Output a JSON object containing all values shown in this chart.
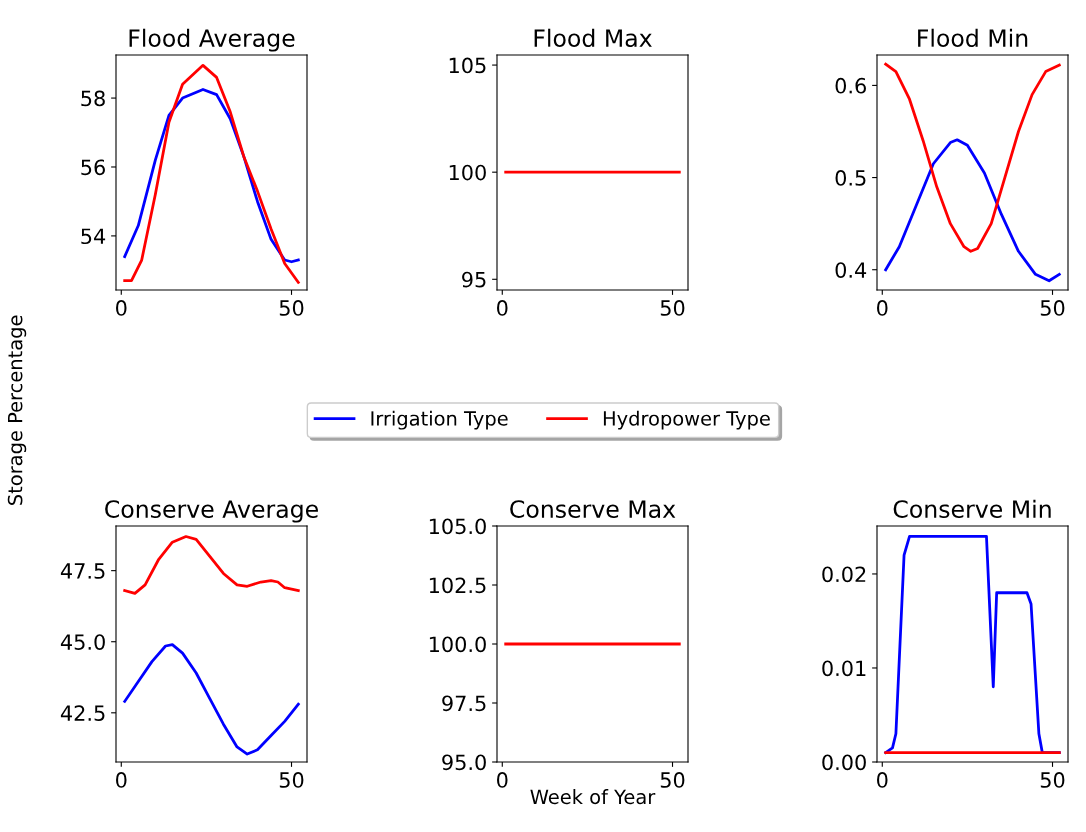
{
  "chart_data": [
    {
      "type": "line",
      "title": "Flood Average",
      "legend": "bottom",
      "xlim": [
        -1.55,
        54.55
      ],
      "xticks": [
        0,
        50
      ],
      "ylim": [
        52.43,
        59.25
      ],
      "yticks": [
        54,
        56,
        58
      ],
      "series": [
        {
          "name": "Irrigation Type",
          "color": "#0000ff",
          "x": [
            1,
            5,
            10,
            14,
            18,
            24,
            28,
            32,
            36,
            40,
            44,
            48,
            50,
            52
          ],
          "values": [
            53.4,
            54.3,
            56.2,
            57.5,
            58.0,
            58.25,
            58.1,
            57.4,
            56.3,
            55.0,
            53.9,
            53.3,
            53.25,
            53.3
          ]
        },
        {
          "name": "Hydropower Type",
          "color": "#ff0000",
          "x": [
            1,
            3,
            6,
            10,
            14,
            18,
            24,
            28,
            32,
            36,
            40,
            44,
            48,
            52
          ],
          "values": [
            52.7,
            52.7,
            53.3,
            55.2,
            57.3,
            58.4,
            58.95,
            58.6,
            57.6,
            56.3,
            55.3,
            54.2,
            53.2,
            52.65
          ]
        }
      ]
    },
    {
      "type": "line",
      "title": "Flood Max",
      "xlim": [
        -1.55,
        54.55
      ],
      "xticks": [
        0,
        50
      ],
      "ylim": [
        94.5,
        105.47
      ],
      "yticks": [
        95,
        100,
        105
      ],
      "series": [
        {
          "color": "#ff0000",
          "x": [
            1,
            52
          ],
          "values": [
            100,
            100
          ]
        }
      ]
    },
    {
      "type": "line",
      "title": "Flood Min",
      "xlim": [
        -1.55,
        54.55
      ],
      "xticks": [
        0,
        50
      ],
      "ylim": [
        0.378,
        0.633
      ],
      "yticks": [
        0.4,
        0.5,
        0.6
      ],
      "series": [
        {
          "color": "#0000ff",
          "x": [
            1,
            5,
            10,
            15,
            20,
            22,
            25,
            30,
            35,
            40,
            45,
            49,
            52
          ],
          "values": [
            0.4,
            0.425,
            0.47,
            0.515,
            0.538,
            0.541,
            0.535,
            0.505,
            0.46,
            0.42,
            0.395,
            0.388,
            0.395
          ]
        },
        {
          "color": "#ff0000",
          "x": [
            1,
            4,
            8,
            12,
            16,
            20,
            24,
            26,
            28,
            32,
            36,
            40,
            44,
            48,
            52
          ],
          "values": [
            0.623,
            0.615,
            0.585,
            0.54,
            0.49,
            0.45,
            0.425,
            0.42,
            0.423,
            0.45,
            0.5,
            0.55,
            0.59,
            0.615,
            0.622
          ]
        }
      ]
    },
    {
      "type": "line",
      "title": "Conserve Average",
      "ylabel": "Storage Percentage",
      "xlim": [
        -1.55,
        54.55
      ],
      "xticks": [
        0,
        50
      ],
      "ylim": [
        40.77,
        49.07
      ],
      "yticks": [
        {
          "value": 42.5,
          "label": "42.5"
        },
        {
          "value": 45,
          "label": "45.0"
        },
        {
          "value": 47.5,
          "label": "47.5"
        }
      ],
      "series": [
        {
          "color": "#0000ff",
          "x": [
            1,
            5,
            9,
            13,
            15,
            18,
            22,
            26,
            30,
            34,
            37,
            40,
            44,
            48,
            52
          ],
          "values": [
            42.9,
            43.6,
            44.3,
            44.85,
            44.9,
            44.6,
            43.9,
            43.0,
            42.1,
            41.3,
            41.05,
            41.2,
            41.7,
            42.2,
            42.8
          ]
        },
        {
          "color": "#ff0000",
          "x": [
            1,
            4,
            7,
            11,
            15,
            19,
            22,
            26,
            30,
            34,
            37,
            41,
            44,
            46,
            48,
            52
          ],
          "values": [
            46.8,
            46.7,
            47.0,
            47.9,
            48.5,
            48.7,
            48.6,
            48.0,
            47.4,
            47.0,
            46.95,
            47.1,
            47.15,
            47.1,
            46.9,
            46.8
          ]
        }
      ]
    },
    {
      "type": "line",
      "title": "Conserve Max",
      "xlabel": "Week of Year",
      "xlim": [
        -1.55,
        54.55
      ],
      "xticks": [
        0,
        50
      ],
      "ylim": [
        95,
        105
      ],
      "yticks": [
        {
          "value": 95,
          "label": "95.0"
        },
        {
          "value": 97.5,
          "label": "97.5"
        },
        {
          "value": 100,
          "label": "100.0"
        },
        {
          "value": 102.5,
          "label": "102.5"
        },
        {
          "value": 105,
          "label": "105.0"
        }
      ],
      "series": [
        {
          "color": "#ff0000",
          "x": [
            1,
            52
          ],
          "values": [
            100,
            100
          ]
        }
      ]
    },
    {
      "type": "line",
      "title": "Conserve Min",
      "xlim": [
        -1.55,
        54.55
      ],
      "xticks": [
        0,
        50
      ],
      "ylim": [
        0,
        0.0251
      ],
      "yticks": [
        {
          "value": 0,
          "label": "0.00"
        },
        {
          "value": 0.01,
          "label": "0.01"
        },
        {
          "value": 0.02,
          "label": "0.02"
        }
      ],
      "series": [
        {
          "color": "#0000ff",
          "x": [
            1,
            3,
            4,
            6.4,
            8,
            30.6,
            32.6,
            33.6,
            42.5,
            43.7,
            46,
            47,
            52
          ],
          "values": [
            0.001,
            0.0015,
            0.003,
            0.022,
            0.024,
            0.024,
            0.008,
            0.018,
            0.018,
            0.0168,
            0.003,
            0.001,
            0.001
          ]
        },
        {
          "color": "#ff0000",
          "x": [
            1,
            52
          ],
          "values": [
            0.001,
            0.001
          ]
        }
      ]
    }
  ]
}
